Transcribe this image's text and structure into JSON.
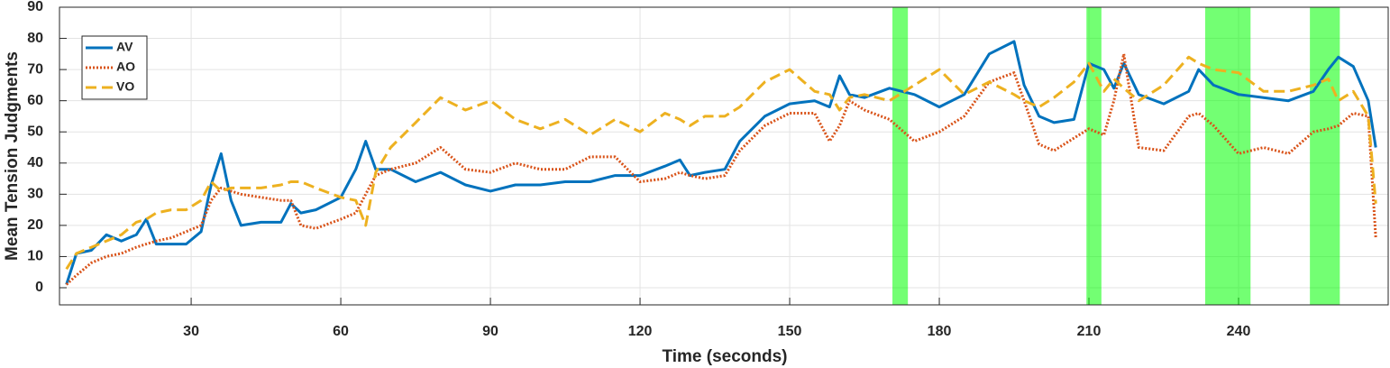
{
  "chart_data": {
    "type": "line",
    "xlabel": "Time (seconds)",
    "ylabel": "Mean Tension Judgments",
    "x": [
      5,
      7,
      10,
      13,
      16,
      19,
      21,
      23,
      26,
      29,
      32,
      34,
      36,
      38,
      40,
      44,
      48,
      50,
      52,
      55,
      60,
      63,
      65,
      67,
      70,
      75,
      80,
      85,
      90,
      95,
      100,
      105,
      110,
      115,
      120,
      125,
      128,
      130,
      133,
      137,
      140,
      145,
      150,
      155,
      158,
      160,
      162,
      165,
      170,
      175,
      180,
      185,
      190,
      195,
      197,
      200,
      203,
      207,
      210,
      213,
      215,
      217,
      220,
      225,
      230,
      232,
      235,
      240,
      245,
      250,
      255,
      258,
      260,
      263,
      266,
      267.5
    ],
    "series": [
      {
        "name": "AV",
        "color": "#0072bd",
        "style": "solid",
        "values": [
          1,
          11,
          12,
          17,
          15,
          17,
          22,
          14,
          14,
          14,
          18,
          33,
          43,
          28,
          20,
          21,
          21,
          27,
          24,
          25,
          29,
          38,
          47,
          38,
          38,
          34,
          37,
          33,
          31,
          33,
          33,
          34,
          34,
          36,
          36,
          39,
          41,
          36,
          37,
          38,
          47,
          55,
          59,
          60,
          58,
          68,
          62,
          61,
          64,
          62,
          58,
          62,
          75,
          79,
          65,
          55,
          53,
          54,
          72,
          70,
          64,
          72,
          62,
          59,
          63,
          70,
          65,
          62,
          61,
          60,
          63,
          70,
          74,
          71,
          60,
          45
        ]
      },
      {
        "name": "AO",
        "color": "#d95319",
        "style": "dotted",
        "values": [
          1,
          4,
          8,
          10,
          11,
          13,
          14,
          15,
          16,
          18,
          20,
          28,
          32,
          31,
          30,
          29,
          28,
          28,
          20,
          19,
          22,
          24,
          30,
          36,
          38,
          40,
          45,
          38,
          37,
          40,
          38,
          38,
          42,
          42,
          34,
          35,
          37,
          36,
          35,
          36,
          44,
          52,
          56,
          56,
          47,
          52,
          60,
          57,
          54,
          47,
          50,
          55,
          66,
          69,
          60,
          46,
          44,
          48,
          51,
          49,
          60,
          75,
          45,
          44,
          55,
          56,
          52,
          43,
          45,
          43,
          50,
          51,
          52,
          56,
          55,
          16
        ]
      },
      {
        "name": "VO",
        "color": "#edb120",
        "style": "dashed",
        "values": [
          6,
          11,
          13,
          15,
          17,
          21,
          22,
          24,
          25,
          25,
          28,
          34,
          31,
          32,
          32,
          32,
          33,
          34,
          34,
          32,
          29,
          28,
          20,
          37,
          45,
          53,
          61,
          57,
          60,
          54,
          51,
          54,
          49,
          54,
          50,
          56,
          54,
          52,
          55,
          55,
          58,
          66,
          70,
          63,
          62,
          57,
          61,
          62,
          60,
          65,
          70,
          62,
          66,
          62,
          60,
          58,
          61,
          66,
          72,
          63,
          67,
          64,
          60,
          65,
          74,
          72,
          70,
          69,
          63,
          63,
          65,
          67,
          60,
          63,
          55,
          27
        ]
      }
    ],
    "highlight_spans": [
      [
        170.6,
        173.7
      ],
      [
        209.5,
        212.5
      ],
      [
        233.3,
        242.4
      ],
      [
        254.3,
        260.3
      ]
    ],
    "highlight_color": "#00ff00",
    "xlim": [
      3.6,
      270
    ],
    "ylim": [
      -5.5,
      90
    ],
    "xticks": [
      30,
      60,
      90,
      120,
      150,
      180,
      210,
      240
    ],
    "yticks": [
      0,
      10,
      20,
      30,
      40,
      50,
      60,
      70,
      80,
      90
    ],
    "grid": true,
    "legend": "upper-left"
  }
}
